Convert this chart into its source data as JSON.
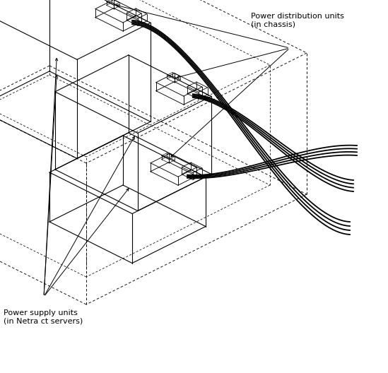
{
  "background_color": "#ffffff",
  "label_pdu": "Power distribution units\n(in chassis)",
  "label_psu": "Power supply units\n(in Netra ct servers)",
  "fig_width": 5.49,
  "fig_height": 5.28,
  "dpi": 100,
  "line_color": "#000000",
  "lw_solid": 0.8,
  "lw_dashed": 0.65,
  "lw_cable": 1.3
}
